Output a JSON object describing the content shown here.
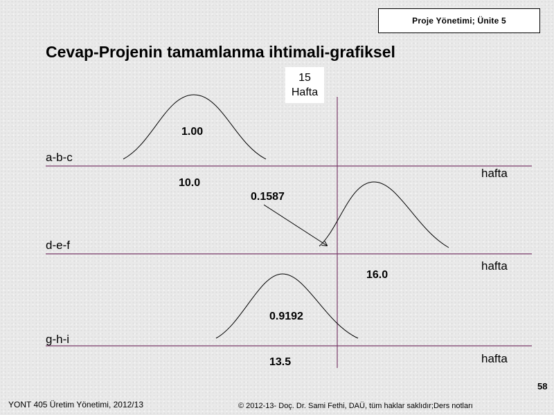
{
  "header": {
    "course": "Proje Yönetimi; Ünite 5"
  },
  "title": "Cevap-Projenin tamamlanma ihtimali-grafiksel",
  "deadline": {
    "value": "15",
    "unit": "Hafta"
  },
  "rows": [
    {
      "path": "a-b-c",
      "probability": "1.00",
      "mean": "10.0",
      "axis_unit": "hafta"
    },
    {
      "path": "d-e-f",
      "probability": "0.1587",
      "mean": "16.0",
      "axis_unit": "hafta"
    },
    {
      "path": "g-h-i",
      "probability": "0.9192",
      "mean": "13.5",
      "axis_unit": "hafta"
    }
  ],
  "footer": {
    "page_number": "58",
    "left": "YONT 405 Üretim Yönetimi, 2012/13",
    "right": "© 2012-13- Doç. Dr. Sami Fethi, DAÜ, tüm haklar saklıdır;Ders notları"
  },
  "colors": {
    "axis_line": "#7a3a6a",
    "curve": "#000000",
    "box_border": "#000000"
  }
}
